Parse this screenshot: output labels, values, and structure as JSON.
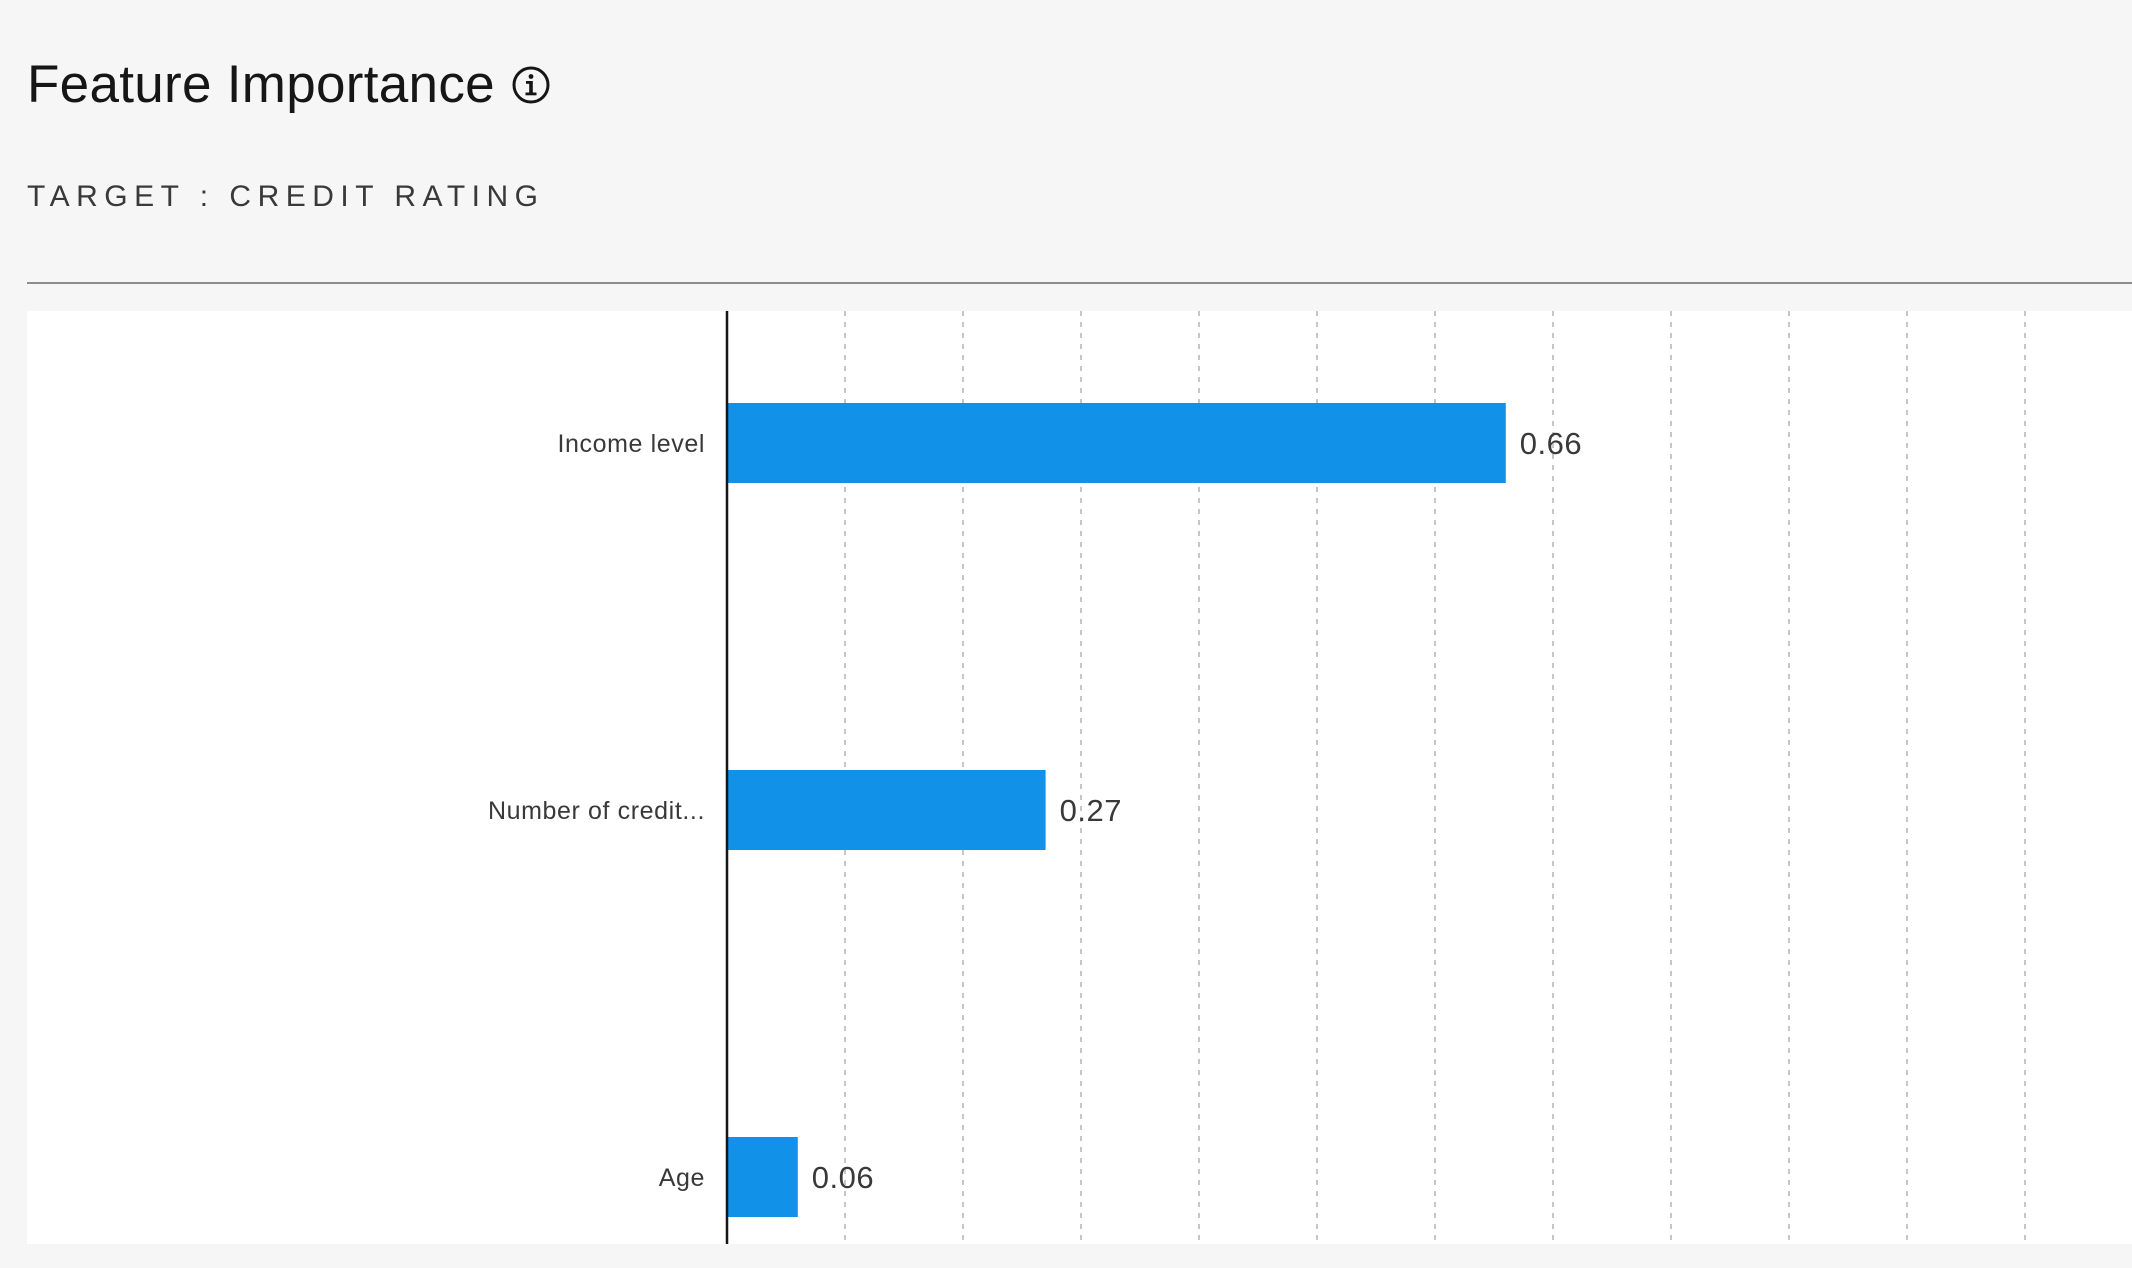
{
  "header": {
    "title": "Feature Importance",
    "info_icon": "info-icon",
    "target_label": "TARGET : CREDIT RATING"
  },
  "colors": {
    "bar": "#1192e8",
    "axis": "#161616",
    "grid": "#c6c6c6"
  },
  "chart_data": {
    "type": "bar",
    "orientation": "horizontal",
    "categories": [
      "Income level",
      "Number of credit...",
      "Age"
    ],
    "values": [
      0.66,
      0.27,
      0.06
    ],
    "value_labels": [
      "0.66",
      "0.27",
      "0.06"
    ],
    "title": "",
    "xlabel": "",
    "ylabel": "",
    "xlim": [
      0,
      1.2
    ],
    "grid": "vertical dashed",
    "legend": "none"
  }
}
